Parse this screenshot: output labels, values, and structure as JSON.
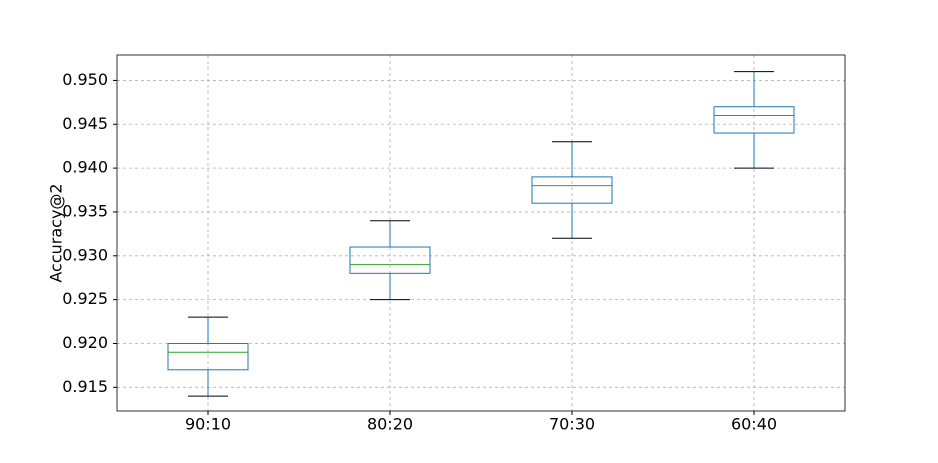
{
  "chart_data": {
    "type": "box",
    "ylabel": "Accuracy@2",
    "categories": [
      "90:10",
      "80:20",
      "70:30",
      "60:40"
    ],
    "whislo": [
      0.914,
      0.925,
      0.932,
      0.94
    ],
    "q1": [
      0.917,
      0.928,
      0.936,
      0.944
    ],
    "median": [
      0.919,
      0.929,
      0.938,
      0.946
    ],
    "q3": [
      0.92,
      0.931,
      0.939,
      0.947
    ],
    "whishi": [
      0.923,
      0.934,
      0.943,
      0.951
    ],
    "box_color": "#1f77b4",
    "median_color": "#2ca02c",
    "cap_color": "#000000",
    "ylim": [
      0.9123,
      0.9529
    ],
    "yticks": [
      0.915,
      {
        "value": 0.92,
        "label": "0.920"
      },
      0.925,
      {
        "value": 0.93,
        "label": "0.930"
      },
      0.935,
      {
        "value": 0.94,
        "label": "0.940"
      },
      0.945,
      {
        "value": 0.95,
        "label": "0.950"
      }
    ],
    "grid": true
  }
}
